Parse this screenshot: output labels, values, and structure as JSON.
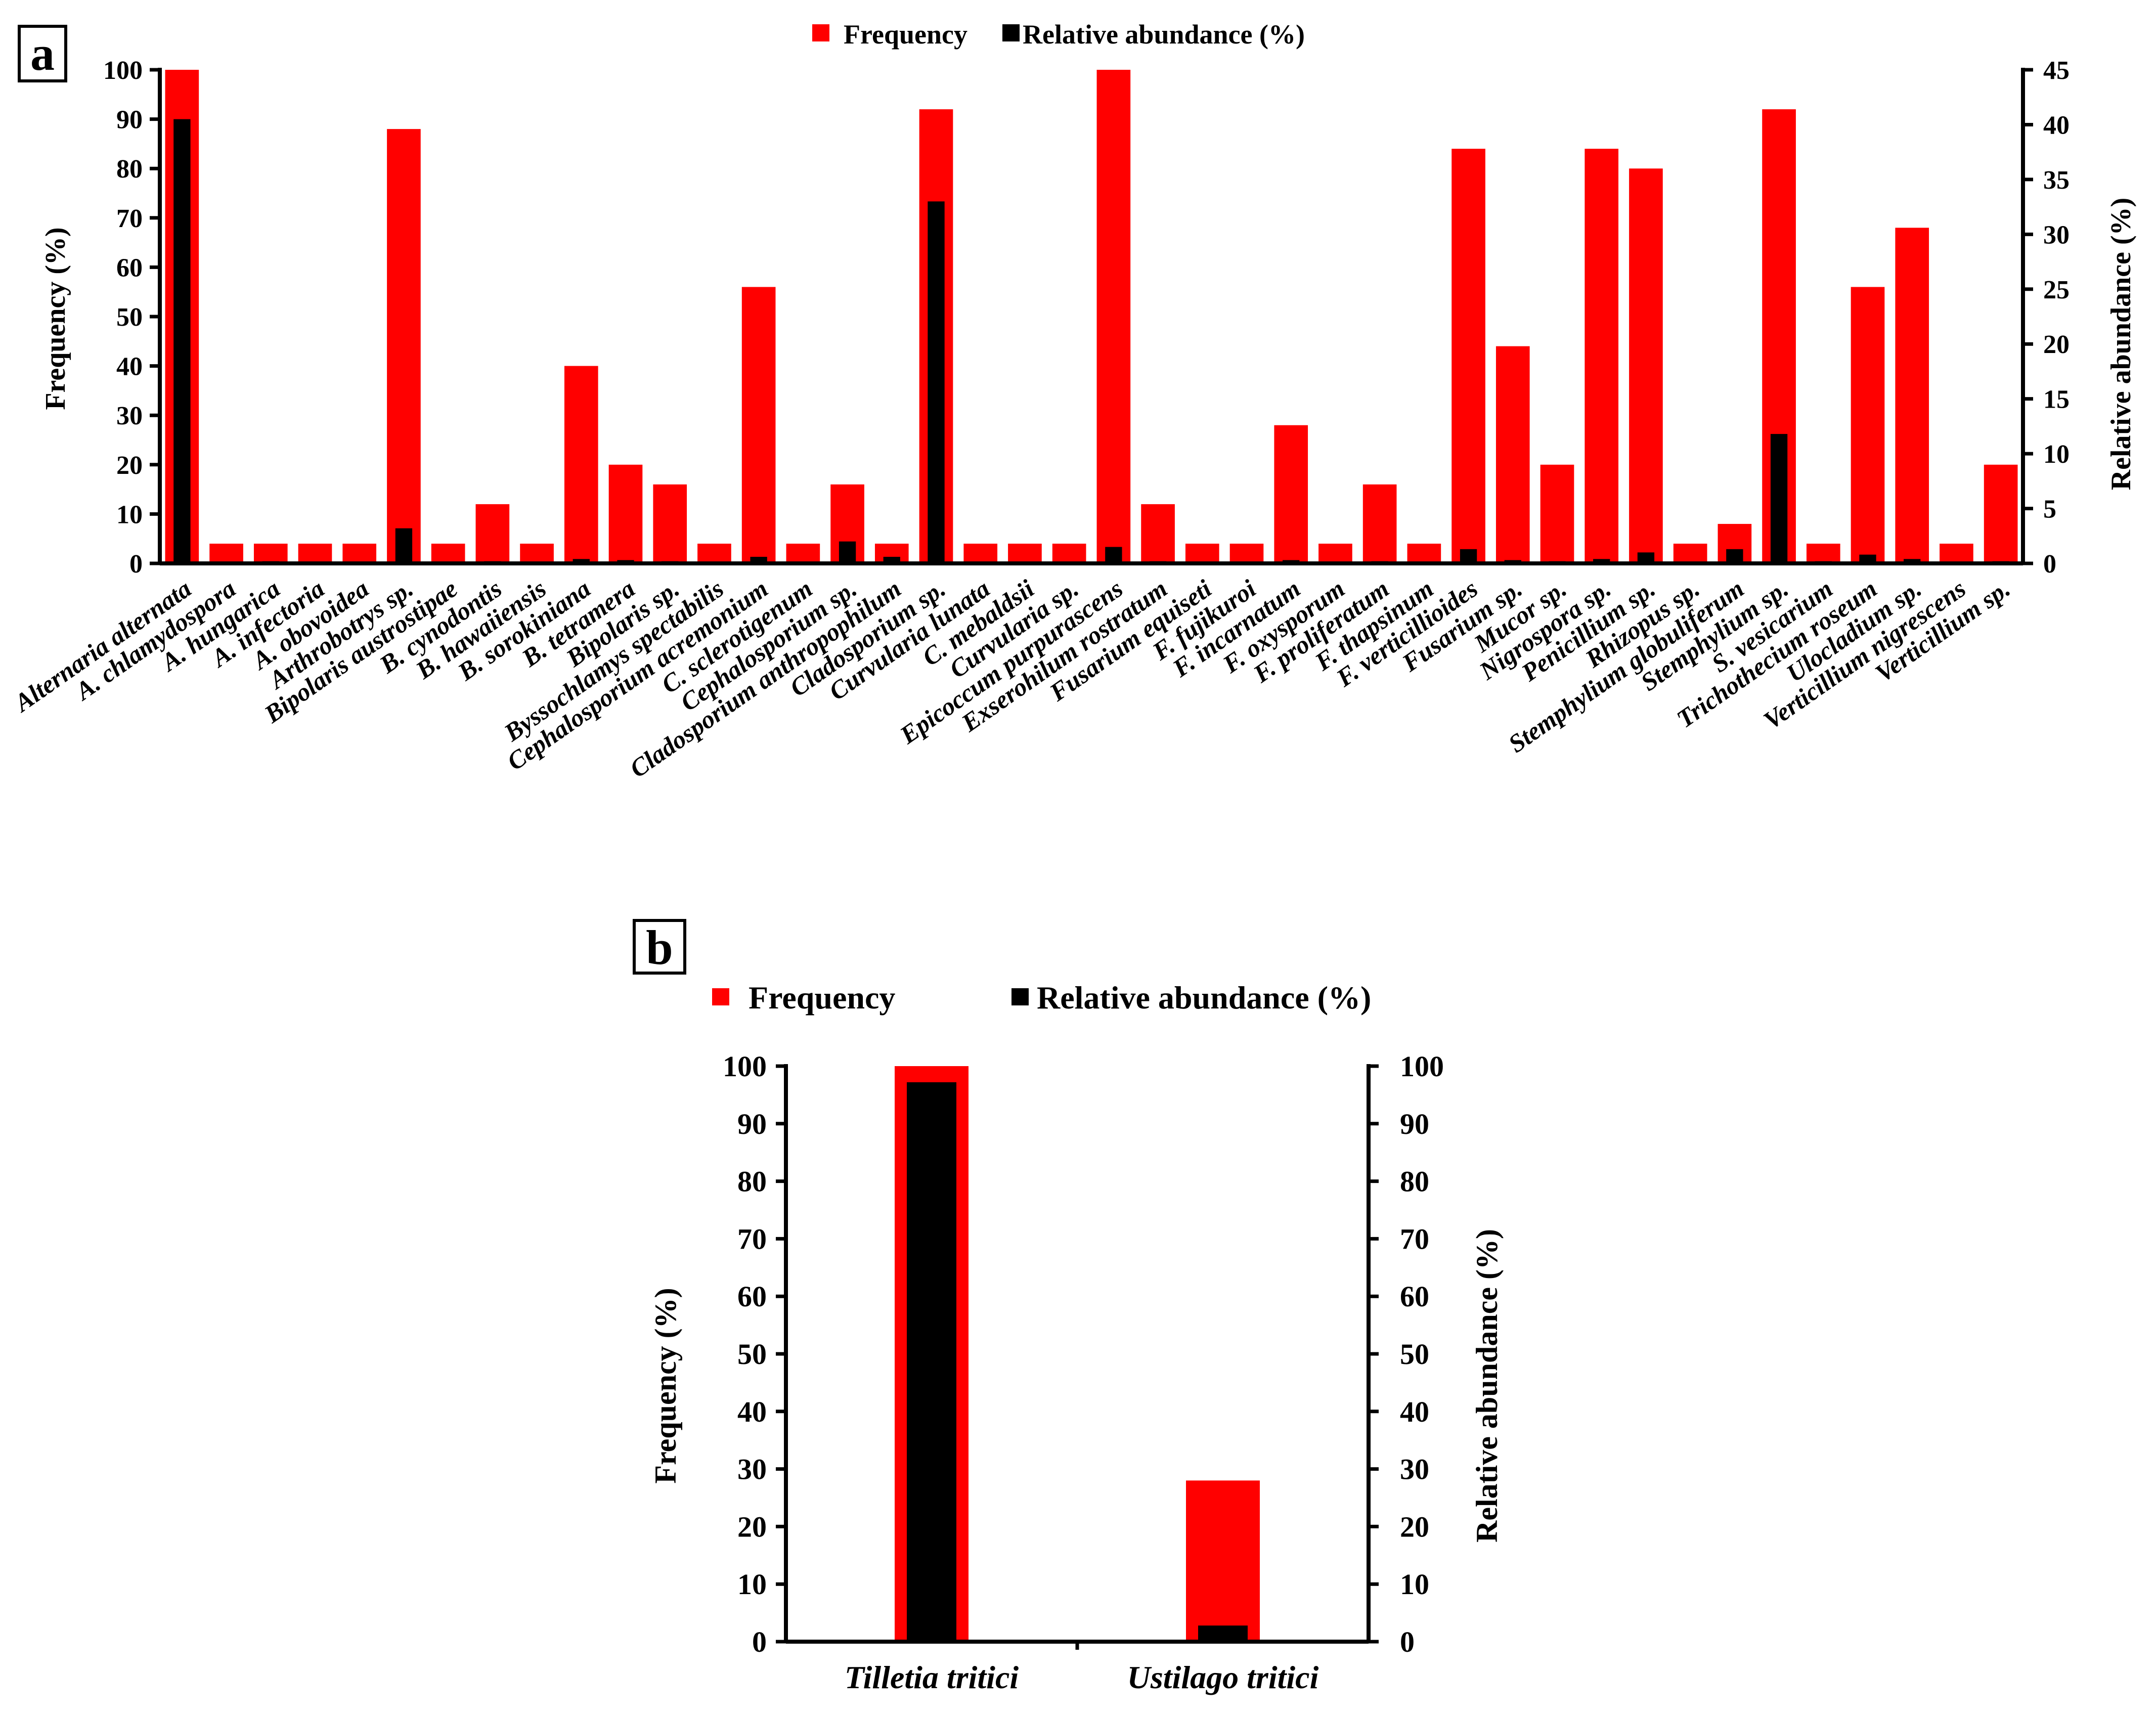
{
  "colors": {
    "frequency": "#ff0000",
    "abundance": "#000000"
  },
  "chart_data": [
    {
      "panel": "a",
      "type": "bar",
      "legend": [
        "Frequency",
        "Relative abundance (%)"
      ],
      "ylabel": "Frequency (%)",
      "y2label": "Relative abundance (%)",
      "ylim": [
        0,
        100
      ],
      "y2lim": [
        0,
        45
      ],
      "yticks": [
        0,
        10,
        20,
        30,
        40,
        50,
        60,
        70,
        80,
        90,
        100
      ],
      "y2ticks": [
        0,
        5,
        10,
        15,
        20,
        25,
        30,
        35,
        40,
        45
      ],
      "categories": [
        "Alternaria alternata",
        "A. chlamydospora",
        "A. hungarica",
        "A. infectoria",
        "A. obovoidea",
        "Arthrobotrys  sp.",
        "Bipolaris austrostipae",
        "B. cynodontis",
        "B. hawaiiensis",
        "B. sorokiniana",
        "B. tetramera",
        "Bipolaris sp.",
        "Byssochlamys spectabilis",
        "Cephalosporium acremonium",
        "C. sclerotigenum",
        "Cephalosporium sp.",
        "Cladosporium anthropophilum",
        "Cladosporium sp.",
        "Curvularia lunata",
        "C. mebaldsii",
        "Curvularia sp.",
        "Epicoccum purpurascens",
        "Exserohilum rostratum",
        "Fusarium equiseti",
        "F. fujikuroi",
        "F. incarnatum",
        "F. oxysporum",
        "F. proliferatum",
        "F. thapsinum",
        "F. verticillioides",
        "Fusarium sp.",
        "Mucor sp.",
        "Nigrospora sp.",
        "Penicillium sp.",
        "Rhizopus sp.",
        "Stemphylium globuliferum",
        "Stemphylium sp.",
        "S. vesicarium",
        "Trichothecium roseum",
        "Ulocladium sp.",
        "Verticillium nigrescens",
        "Verticillium sp."
      ],
      "series": [
        {
          "name": "Frequency",
          "axis": "left",
          "values": [
            100,
            4,
            4,
            4,
            4,
            88,
            4,
            12,
            4,
            40,
            20,
            16,
            4,
            56,
            4,
            16,
            4,
            92,
            4,
            4,
            4,
            100,
            12,
            4,
            4,
            28,
            4,
            16,
            4,
            84,
            44,
            20,
            84,
            80,
            4,
            8,
            92,
            4,
            56,
            68,
            4,
            20
          ]
        },
        {
          "name": "Relative abundance (%)",
          "axis": "right",
          "values": [
            40.5,
            0.1,
            0.2,
            0.1,
            0.1,
            3.2,
            0.1,
            0.2,
            0.1,
            0.4,
            0.3,
            0.2,
            0.1,
            0.6,
            0.1,
            2.0,
            0.6,
            33.0,
            0.1,
            0.1,
            0.1,
            1.5,
            0.2,
            0.1,
            0.1,
            0.3,
            0.1,
            0.2,
            0.1,
            1.3,
            0.3,
            0.2,
            0.4,
            1.0,
            0.1,
            1.3,
            11.8,
            0.2,
            0.8,
            0.4,
            0.1,
            0.2
          ]
        }
      ]
    },
    {
      "panel": "b",
      "type": "bar",
      "legend": [
        "Frequency",
        "Relative abundance (%)"
      ],
      "ylabel": "Frequency (%)",
      "y2label": "Relative abundance (%)",
      "ylim": [
        0,
        100
      ],
      "y2lim": [
        0,
        100
      ],
      "yticks": [
        0,
        10,
        20,
        30,
        40,
        50,
        60,
        70,
        80,
        90,
        100
      ],
      "y2ticks": [
        0,
        10,
        20,
        30,
        40,
        50,
        60,
        70,
        80,
        90,
        100
      ],
      "categories": [
        "Tilletia tritici",
        "Ustilago tritici"
      ],
      "series": [
        {
          "name": "Frequency",
          "axis": "left",
          "values": [
            100,
            28
          ]
        },
        {
          "name": "Relative abundance (%)",
          "axis": "right",
          "values": [
            97.2,
            2.8
          ]
        }
      ]
    }
  ]
}
